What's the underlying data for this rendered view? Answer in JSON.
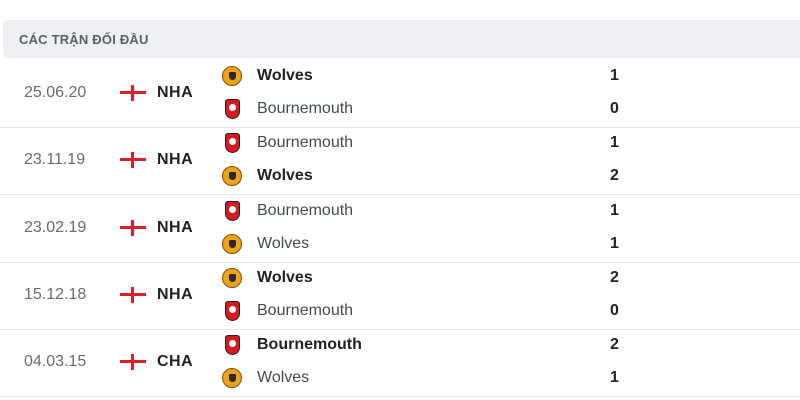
{
  "header": {
    "title": "CÁC TRẬN ĐỐI ĐẦU"
  },
  "colors": {
    "flag": "#d9202b",
    "header_bg": "#eef0f3"
  },
  "matches": [
    {
      "date": "25.06.20",
      "flag": "england-flag",
      "competition": "NHA",
      "home": {
        "name": "Wolves",
        "logo": "wolves-logo",
        "score": "1",
        "winner": true
      },
      "away": {
        "name": "Bournemouth",
        "logo": "bournemouth-logo",
        "score": "0",
        "winner": false
      }
    },
    {
      "date": "23.11.19",
      "flag": "england-flag",
      "competition": "NHA",
      "home": {
        "name": "Bournemouth",
        "logo": "bournemouth-logo",
        "score": "1",
        "winner": false
      },
      "away": {
        "name": "Wolves",
        "logo": "wolves-logo",
        "score": "2",
        "winner": true
      }
    },
    {
      "date": "23.02.19",
      "flag": "england-flag",
      "competition": "NHA",
      "home": {
        "name": "Bournemouth",
        "logo": "bournemouth-logo",
        "score": "1",
        "winner": false
      },
      "away": {
        "name": "Wolves",
        "logo": "wolves-logo",
        "score": "1",
        "winner": false
      }
    },
    {
      "date": "15.12.18",
      "flag": "england-flag",
      "competition": "NHA",
      "home": {
        "name": "Wolves",
        "logo": "wolves-logo",
        "score": "2",
        "winner": true
      },
      "away": {
        "name": "Bournemouth",
        "logo": "bournemouth-logo",
        "score": "0",
        "winner": false
      }
    },
    {
      "date": "04.03.15",
      "flag": "england-flag",
      "competition": "CHA",
      "home": {
        "name": "Bournemouth",
        "logo": "bournemouth-logo",
        "score": "2",
        "winner": true
      },
      "away": {
        "name": "Wolves",
        "logo": "wolves-logo",
        "score": "1",
        "winner": false
      }
    }
  ]
}
